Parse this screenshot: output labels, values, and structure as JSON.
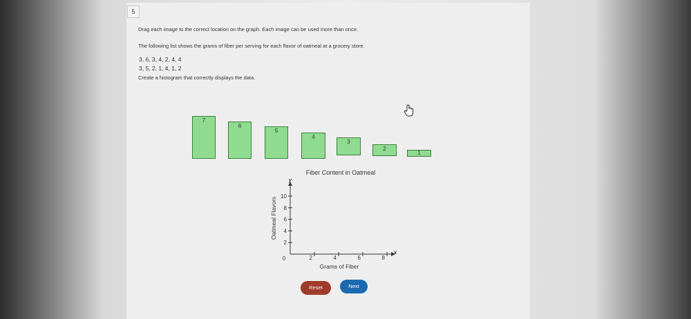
{
  "question_number": "5",
  "instructions": "Drag each image to the correct location on the graph. Each image can be used more than once.",
  "prompt": "The following list shows the grams of fiber per serving for each flavor of oatmeal at a grocery store.",
  "data_line_1": "3, 6, 3, 4, 2, 4, 4",
  "data_line_2": "3, 5, 2, 1, 4, 1, 2",
  "task": "Create a histogram that correctly displays the data.",
  "tiles": [
    {
      "label": "7",
      "value": 7
    },
    {
      "label": "6",
      "value": 6
    },
    {
      "label": "5",
      "value": 5
    },
    {
      "label": "4",
      "value": 4
    },
    {
      "label": "3",
      "value": 3
    },
    {
      "label": "2",
      "value": 2
    },
    {
      "label": "1",
      "value": 1
    }
  ],
  "chart_data": {
    "type": "bar",
    "title": "Fiber Content in Oatmeal",
    "xlabel": "Grams of Fiber",
    "ylabel": "Oatmeal Flavors",
    "x_axis_letter": "x",
    "y_axis_letter": "y",
    "origin_label": "0",
    "xticks": [
      "2",
      "4",
      "6",
      "8"
    ],
    "yticks": [
      "2",
      "4",
      "6",
      "8",
      "10"
    ],
    "xlim": [
      0,
      8
    ],
    "ylim": [
      0,
      10
    ],
    "grid": false,
    "categories": [],
    "values": []
  },
  "buttons": {
    "reset": "Reset",
    "next": "Next"
  }
}
